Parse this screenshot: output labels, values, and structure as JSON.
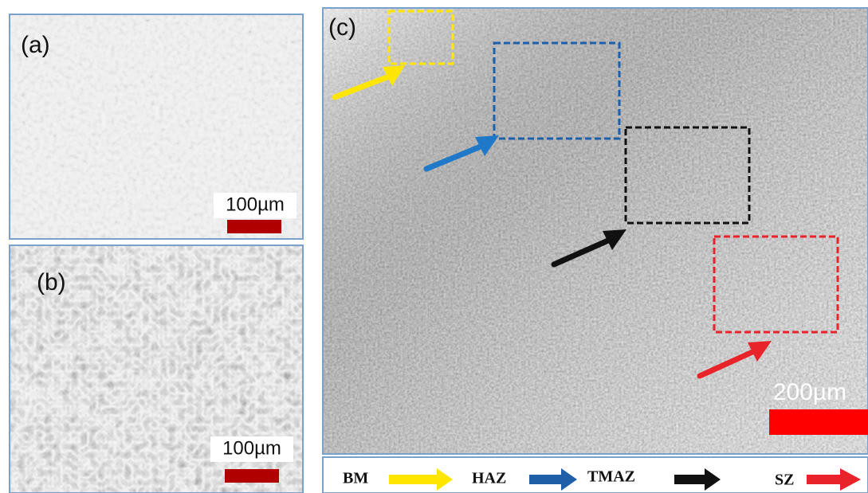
{
  "panels": [
    {
      "label": "(a)",
      "scale_bar": "100µm"
    },
    {
      "label": "(b)",
      "scale_bar": "100µm"
    },
    {
      "label": "(c)",
      "scale_bar": "200µm"
    }
  ],
  "legend": [
    {
      "label": "BM"
    },
    {
      "label": "HAZ"
    },
    {
      "label": "TMAZ"
    },
    {
      "label": "SZ"
    }
  ]
}
